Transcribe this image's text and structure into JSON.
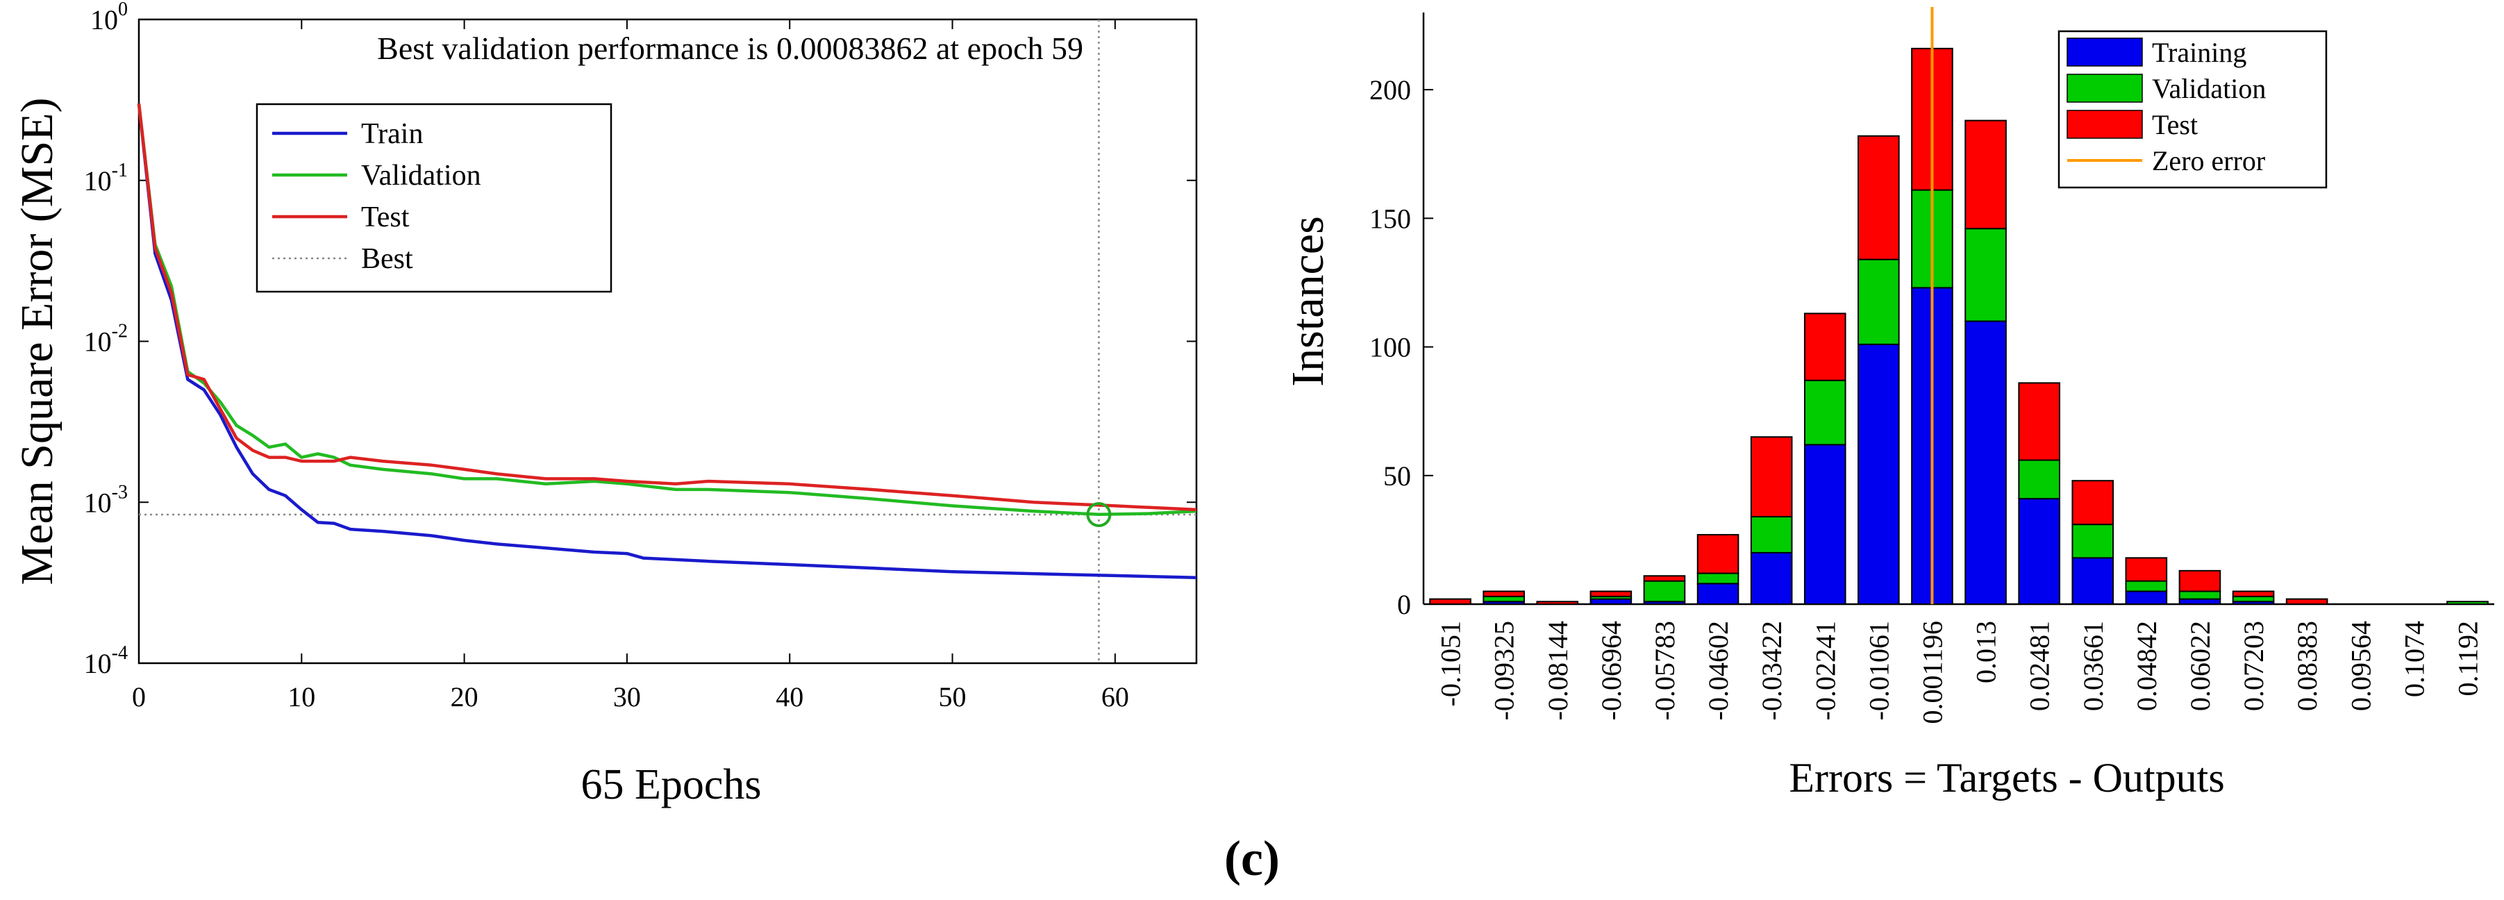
{
  "caption": "(c)",
  "chart_data": [
    {
      "type": "line",
      "name": "performance",
      "title": "Best validation performance is 0.00083862 at epoch 59",
      "xlabel": "65 Epochs",
      "ylabel": "Mean Square Error (MSE)",
      "yscale": "log",
      "xlim": [
        0,
        65
      ],
      "ylim_exp": [
        -4,
        0
      ],
      "xticks": [
        0,
        10,
        20,
        30,
        40,
        50,
        60
      ],
      "xtick_labels": [
        "0",
        "10",
        "20",
        "30",
        "40",
        "50",
        "60"
      ],
      "yticks": [
        {
          "value": 1,
          "base": "10",
          "exp": "0"
        },
        {
          "value": 0.1,
          "base": "10",
          "exp": "-1"
        },
        {
          "value": 0.01,
          "base": "10",
          "exp": "-2"
        },
        {
          "value": 0.001,
          "base": "10",
          "exp": "-3"
        },
        {
          "value": 0.0001,
          "base": "10",
          "exp": "-4"
        }
      ],
      "best": {
        "epoch": 59,
        "value": 0.00083862
      },
      "legend": {
        "placement": "top-left",
        "entries": [
          {
            "label": "Train",
            "color": "#1a1acc",
            "style": "solid"
          },
          {
            "label": "Validation",
            "color": "#22bb22",
            "style": "solid"
          },
          {
            "label": "Test",
            "color": "#dd2222",
            "style": "solid"
          },
          {
            "label": "Best",
            "color": "#888888",
            "style": "dotted"
          }
        ]
      },
      "series": [
        {
          "name": "Train",
          "color": "#1a1acc",
          "x": [
            0,
            1,
            2,
            3,
            4,
            5,
            6,
            7,
            8,
            9,
            10,
            11,
            12,
            13,
            15,
            18,
            20,
            22,
            25,
            28,
            30,
            31,
            33,
            35,
            40,
            45,
            50,
            55,
            60,
            65
          ],
          "y": [
            0.3,
            0.035,
            0.018,
            0.0058,
            0.005,
            0.0035,
            0.0022,
            0.0015,
            0.0012,
            0.0011,
            0.0009,
            0.00075,
            0.00074,
            0.00068,
            0.00066,
            0.00062,
            0.00058,
            0.00055,
            0.00052,
            0.00049,
            0.00048,
            0.00045,
            0.00044,
            0.00043,
            0.00041,
            0.00039,
            0.00037,
            0.00036,
            0.00035,
            0.00034
          ]
        },
        {
          "name": "Validation",
          "color": "#22bb22",
          "x": [
            0,
            1,
            2,
            3,
            4,
            5,
            6,
            7,
            8,
            9,
            10,
            11,
            12,
            13,
            15,
            18,
            20,
            22,
            25,
            28,
            30,
            33,
            35,
            40,
            45,
            50,
            55,
            59,
            62,
            65
          ],
          "y": [
            0.3,
            0.04,
            0.022,
            0.0065,
            0.0055,
            0.0042,
            0.003,
            0.0026,
            0.0022,
            0.0023,
            0.0019,
            0.002,
            0.0019,
            0.0017,
            0.0016,
            0.0015,
            0.0014,
            0.0014,
            0.0013,
            0.00135,
            0.0013,
            0.0012,
            0.0012,
            0.00115,
            0.00105,
            0.00095,
            0.00088,
            0.00084,
            0.00085,
            0.00088
          ]
        },
        {
          "name": "Test",
          "color": "#dd2222",
          "x": [
            0,
            1,
            2,
            3,
            4,
            5,
            6,
            7,
            8,
            9,
            10,
            11,
            12,
            13,
            15,
            18,
            20,
            22,
            25,
            28,
            30,
            33,
            35,
            40,
            45,
            50,
            55,
            60,
            65
          ],
          "y": [
            0.3,
            0.038,
            0.02,
            0.0062,
            0.0058,
            0.0038,
            0.0025,
            0.0021,
            0.0019,
            0.0019,
            0.0018,
            0.0018,
            0.0018,
            0.0019,
            0.0018,
            0.0017,
            0.0016,
            0.0015,
            0.0014,
            0.0014,
            0.00135,
            0.0013,
            0.00135,
            0.0013,
            0.0012,
            0.0011,
            0.001,
            0.00095,
            0.0009
          ]
        }
      ]
    },
    {
      "type": "bar",
      "name": "error-histogram",
      "stacked": true,
      "xlabel": "Errors = Targets - Outputs",
      "ylabel": "Instances",
      "ylim": [
        0,
        230
      ],
      "yticks": [
        0,
        50,
        100,
        150,
        200
      ],
      "categories": [
        "-0.1051",
        "-0.09325",
        "-0.08144",
        "-0.06964",
        "-0.05783",
        "-0.04602",
        "-0.03422",
        "-0.02241",
        "-0.01061",
        "0.001196",
        "0.013",
        "0.02481",
        "0.03661",
        "0.04842",
        "0.06022",
        "0.07203",
        "0.08383",
        "0.09564",
        "0.1074",
        "0.1192"
      ],
      "zero_error_category": "0.001196",
      "legend": {
        "placement": "top-right",
        "entries": [
          {
            "label": "Training",
            "color": "#0000ee",
            "kind": "bar"
          },
          {
            "label": "Validation",
            "color": "#00cc00",
            "kind": "bar"
          },
          {
            "label": "Test",
            "color": "#ff0000",
            "kind": "bar"
          },
          {
            "label": "Zero error",
            "color": "#ff9900",
            "kind": "line"
          }
        ]
      },
      "series": [
        {
          "name": "Training",
          "color": "#0000ee",
          "values": [
            0,
            1,
            0,
            2,
            1,
            8,
            20,
            62,
            101,
            123,
            110,
            41,
            18,
            5,
            2,
            1,
            0,
            0,
            0,
            0
          ]
        },
        {
          "name": "Validation",
          "color": "#00cc00",
          "values": [
            0,
            2,
            0,
            1,
            8,
            4,
            14,
            25,
            33,
            38,
            36,
            15,
            13,
            4,
            3,
            2,
            0,
            0,
            0,
            1
          ]
        },
        {
          "name": "Test",
          "color": "#ff0000",
          "values": [
            2,
            2,
            1,
            2,
            2,
            15,
            31,
            26,
            48,
            55,
            42,
            30,
            17,
            9,
            8,
            2,
            2,
            0,
            0,
            0
          ]
        }
      ]
    }
  ]
}
